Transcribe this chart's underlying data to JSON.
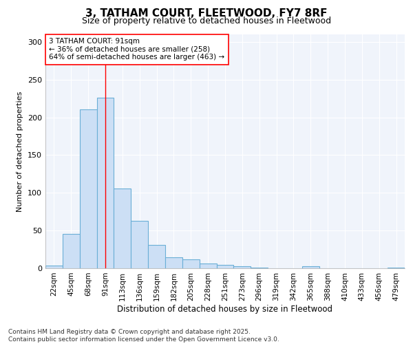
{
  "title": "3, TATHAM COURT, FLEETWOOD, FY7 8RF",
  "subtitle": "Size of property relative to detached houses in Fleetwood",
  "xlabel": "Distribution of detached houses by size in Fleetwood",
  "ylabel": "Number of detached properties",
  "bar_color": "#ccdff5",
  "bar_edge_color": "#6aaed6",
  "background_color": "#ffffff",
  "plot_bg_color": "#f0f4fb",
  "grid_color": "#ffffff",
  "categories": [
    "22sqm",
    "45sqm",
    "68sqm",
    "91sqm",
    "113sqm",
    "136sqm",
    "159sqm",
    "182sqm",
    "205sqm",
    "228sqm",
    "251sqm",
    "273sqm",
    "296sqm",
    "319sqm",
    "342sqm",
    "365sqm",
    "388sqm",
    "410sqm",
    "433sqm",
    "456sqm",
    "479sqm"
  ],
  "values": [
    4,
    46,
    211,
    226,
    106,
    63,
    31,
    15,
    12,
    6,
    5,
    3,
    1,
    0,
    0,
    3,
    0,
    0,
    0,
    0,
    1
  ],
  "ylim": [
    0,
    310
  ],
  "yticks": [
    0,
    50,
    100,
    150,
    200,
    250,
    300
  ],
  "vline_index": 3,
  "annotation_text": "3 TATHAM COURT: 91sqm\n← 36% of detached houses are smaller (258)\n64% of semi-detached houses are larger (463) →",
  "footer": "Contains HM Land Registry data © Crown copyright and database right 2025.\nContains public sector information licensed under the Open Government Licence v3.0.",
  "title_fontsize": 11,
  "subtitle_fontsize": 9,
  "ylabel_fontsize": 8,
  "xlabel_fontsize": 8.5,
  "annotation_fontsize": 7.5,
  "footer_fontsize": 6.5,
  "tick_fontsize": 7.5,
  "ytick_fontsize": 8
}
